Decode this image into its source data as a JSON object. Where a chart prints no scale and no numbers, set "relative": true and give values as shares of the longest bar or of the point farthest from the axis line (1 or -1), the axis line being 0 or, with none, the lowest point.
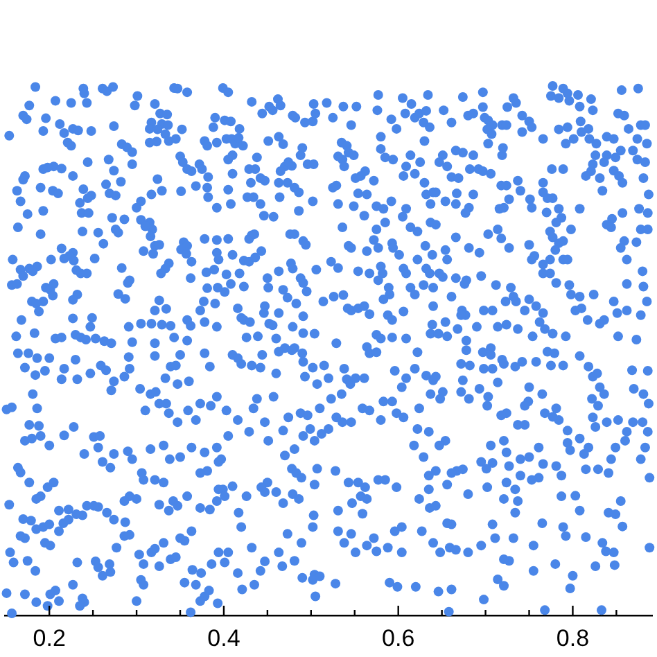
{
  "chart_data": {
    "type": "scatter",
    "color": "#4a86e8",
    "marker": "circle",
    "relative": true,
    "xlim": [
      0.149,
      0.891
    ],
    "xticks": [
      0.2,
      {
        "value": 0.25,
        "label": null
      },
      {
        "value": 0.3,
        "label": null
      },
      {
        "value": 0.35,
        "label": null
      },
      0.4,
      {
        "value": 0.45,
        "label": null
      },
      {
        "value": 0.5,
        "label": null
      },
      {
        "value": 0.55,
        "label": null
      },
      0.6,
      {
        "value": 0.65,
        "label": null
      },
      {
        "value": 0.7,
        "label": null
      },
      {
        "value": 0.75,
        "label": null
      },
      0.8,
      {
        "value": 0.85,
        "label": null
      }
    ],
    "x": [
      0.184,
      0.239,
      0.24,
      0.261,
      0.273,
      0.266,
      0.343,
      0.347,
      0.358,
      0.301,
      0.298,
      0.177,
      0.207,
      0.225,
      0.243,
      0.321,
      0.17,
      0.174,
      0.196,
      0.212,
      0.227,
      0.233,
      0.248,
      0.274,
      0.154,
      0.193,
      0.217,
      0.221,
      0.225,
      0.327,
      0.335,
      0.317,
      0.315,
      0.329,
      0.336,
      0.324,
      0.352,
      0.333,
      0.315,
      0.323,
      0.337,
      0.345,
      0.378,
      0.381,
      0.39,
      0.388,
      0.392,
      0.283,
      0.289,
      0.295,
      0.295,
      0.244,
      0.268,
      0.274,
      0.205,
      0.198,
      0.193,
      0.214,
      0.227,
      0.172,
      0.17,
      0.163,
      0.167,
      0.19,
      0.204,
      0.21,
      0.239,
      0.248,
      0.244,
      0.269,
      0.276,
      0.265,
      0.282,
      0.324,
      0.329,
      0.317,
      0.305,
      0.3,
      0.351,
      0.35,
      0.353,
      0.358,
      0.363,
      0.372,
      0.375,
      0.368,
      0.382,
      0.381,
      0.382,
      0.392,
      0.235,
      0.237,
      0.245,
      0.175,
      0.193,
      0.164,
      0.19,
      0.238,
      0.256,
      0.272,
      0.286,
      0.276,
      0.279,
      0.305,
      0.315,
      0.318,
      0.31,
      0.262,
      0.316,
      0.321,
      0.326,
      0.308,
      0.319,
      0.354,
      0.358,
      0.351,
      0.357,
      0.363,
      0.378,
      0.392,
      0.392,
      0.394,
      0.214,
      0.227,
      0.223,
      0.217,
      0.228,
      0.202,
      0.186,
      0.177,
      0.181,
      0.167,
      0.158,
      0.17,
      0.157,
      0.163,
      0.231,
      0.236,
      0.243,
      0.252,
      0.283,
      0.337,
      0.333,
      0.328,
      0.362,
      0.38,
      0.389,
      0.393,
      0.381,
      0.196,
      0.201,
      0.205,
      0.204,
      0.193,
      0.18,
      0.185,
      0.232,
      0.227,
      0.29,
      0.292,
      0.279,
      0.287,
      0.168,
      0.227,
      0.249,
      0.247,
      0.188,
      0.326,
      0.321,
      0.334,
      0.305,
      0.317,
      0.329,
      0.339,
      0.291,
      0.373,
      0.377,
      0.39,
      0.358,
      0.362,
      0.378,
      0.392,
      0.162,
      0.183,
      0.207,
      0.214,
      0.23,
      0.236,
      0.242,
      0.253,
      0.263,
      0.271,
      0.295,
      0.321,
      0.343,
      0.358,
      0.399,
      0.405,
      0.432,
      0.444,
      0.452,
      0.456,
      0.462,
      0.465,
      0.479,
      0.482,
      0.493,
      0.502,
      0.503,
      0.505,
      0.518,
      0.525,
      0.537,
      0.552,
      0.546,
      0.577,
      0.576,
      0.592,
      0.598,
      0.605,
      0.608,
      0.615,
      0.619,
      0.624,
      0.629,
      0.632,
      0.634,
      0.636,
      0.63,
      0.401,
      0.408,
      0.418,
      0.403,
      0.409,
      0.413,
      0.417,
      0.422,
      0.405,
      0.41,
      0.438,
      0.451,
      0.463,
      0.468,
      0.49,
      0.488,
      0.496,
      0.503,
      0.535,
      0.541,
      0.543,
      0.549,
      0.536,
      0.531,
      0.538,
      0.562,
      0.557,
      0.551,
      0.572,
      0.58,
      0.58,
      0.585,
      0.594,
      0.614,
      0.609,
      0.619,
      0.625,
      0.632,
      0.64,
      0.637,
      0.63,
      0.606,
      0.429,
      0.436,
      0.442,
      0.447,
      0.431,
      0.41,
      0.405,
      0.408,
      0.427,
      0.434,
      0.442,
      0.463,
      0.473,
      0.481,
      0.486,
      0.47,
      0.474,
      0.478,
      0.465,
      0.464,
      0.502,
      0.525,
      0.529,
      0.531,
      0.549,
      0.554,
      0.564,
      0.575,
      0.583,
      0.592,
      0.609,
      0.605,
      0.614,
      0.622,
      0.637,
      0.446,
      0.457,
      0.486,
      0.476,
      0.481,
      0.491,
      0.494,
      0.432,
      0.429,
      0.435,
      0.405,
      0.536,
      0.561,
      0.575,
      0.585,
      0.572,
      0.593,
      0.594,
      0.601,
      0.577,
      0.564,
      0.543,
      0.546,
      0.631,
      0.639,
      0.41,
      0.423,
      0.429,
      0.443,
      0.436,
      0.463,
      0.477,
      0.479,
      0.488,
      0.491,
      0.506,
      0.523,
      0.531,
      0.554,
      0.567,
      0.58,
      0.582,
      0.577,
      0.589,
      0.59,
      0.606,
      0.609,
      0.622,
      0.632,
      0.636,
      0.614,
      0.619,
      0.629,
      0.64,
      0.418,
      0.403,
      0.408,
      0.401,
      0.423,
      0.45,
      0.451,
      0.468,
      0.473,
      0.483,
      0.495,
      0.514,
      0.526,
      0.537,
      0.542,
      0.546,
      0.554,
      0.561,
      0.567,
      0.583,
      0.588,
      0.593,
      0.606,
      0.64,
      0.639,
      0.416,
      0.42,
      0.423,
      0.43,
      0.447,
      0.446,
      0.452,
      0.456,
      0.463,
      0.479,
      0.491,
      0.491,
      0.504,
      0.439,
      0.426,
      0.46,
      0.47,
      0.481,
      0.529,
      0.564,
      0.575,
      0.58,
      0.593,
      0.609,
      0.637,
      0.674,
      0.697,
      0.652,
      0.661,
      0.68,
      0.686,
      0.697,
      0.699,
      0.703,
      0.708,
      0.702,
      0.707,
      0.719,
      0.724,
      0.725,
      0.732,
      0.735,
      0.742,
      0.75,
      0.753,
      0.742,
      0.766,
      0.777,
      0.789,
      0.775,
      0.784,
      0.794,
      0.796,
      0.806,
      0.821,
      0.823,
      0.808,
      0.809,
      0.818,
      0.81,
      0.794,
      0.784,
      0.792,
      0.801,
      0.819,
      0.827,
      0.839,
      0.847,
      0.856,
      0.875,
      0.852,
      0.859,
      0.864,
      0.878,
      0.883,
      0.874,
      0.885,
      0.869,
      0.855,
      0.849,
      0.839,
      0.836,
      0.826,
      0.823,
      0.821,
      0.815,
      0.831,
      0.834,
      0.847,
      0.853,
      0.857,
      0.874,
      0.883,
      0.881,
      0.887,
      0.886,
      0.876,
      0.857,
      0.845,
      0.839,
      0.844,
      0.859,
      0.873,
      0.886,
      0.878,
      0.651,
      0.647,
      0.656,
      0.661,
      0.669,
      0.682,
      0.692,
      0.697,
      0.706,
      0.719,
      0.72,
      0.703,
      0.686,
      0.674,
      0.666,
      0.643,
      0.654,
      0.666,
      0.667,
      0.686,
      0.681,
      0.677,
      0.643,
      0.654,
      0.666,
      0.681,
      0.693,
      0.703,
      0.714,
      0.718,
      0.727,
      0.716,
      0.721,
      0.727,
      0.718,
      0.724,
      0.737,
      0.74,
      0.751,
      0.753,
      0.766,
      0.766,
      0.771,
      0.77,
      0.777,
      0.784,
      0.787,
      0.781,
      0.789,
      0.776,
      0.808,
      0.798,
      0.774,
      0.777,
      0.784,
      0.789,
      0.78,
      0.789,
      0.794,
      0.774,
      0.766,
      0.753,
      0.756,
      0.75,
      0.766,
      0.774,
      0.781,
      0.796,
      0.798,
      0.808,
      0.81,
      0.824,
      0.803,
      0.817,
      0.831,
      0.836,
      0.851,
      0.862,
      0.878,
      0.885,
      0.881,
      0.862,
      0.88,
      0.862,
      0.855,
      0.847,
      0.656,
      0.647,
      0.651,
      0.666,
      0.676,
      0.678,
      0.695,
      0.712,
      0.729,
      0.735,
      0.732,
      0.723,
      0.75,
      0.758,
      0.766,
      0.762,
      0.768,
      0.777,
      0.792,
      0.745,
      0.708,
      0.698,
      0.661,
      0.673,
      0.677,
      0.672,
      0.654,
      0.668,
      0.678,
      0.69,
      0.714,
      0.724,
      0.737,
      0.754,
      0.646,
      0.656,
      0.852,
      0.873,
      0.706,
      0.164,
      0.172,
      0.176,
      0.186,
      0.2,
      0.195,
      0.184,
      0.217,
      0.214,
      0.232,
      0.23,
      0.247,
      0.259,
      0.265,
      0.274,
      0.271,
      0.286,
      0.292,
      0.291,
      0.304,
      0.316,
      0.321,
      0.333,
      0.339,
      0.345,
      0.35,
      0.347,
      0.36,
      0.378,
      0.384,
      0.392,
      0.385,
      0.373,
      0.368,
      0.359,
      0.347,
      0.337,
      0.334,
      0.326,
      0.322,
      0.157,
      0.151,
      0.186,
      0.181,
      0.177,
      0.188,
      0.172,
      0.18,
      0.19,
      0.2,
      0.217,
      0.228,
      0.24,
      0.251,
      0.258,
      0.256,
      0.261,
      0.274,
      0.27,
      0.29,
      0.295,
      0.31,
      0.316,
      0.331,
      0.338,
      0.35,
      0.363,
      0.378,
      0.392,
      0.394,
      0.381,
      0.373,
      0.394,
      0.392,
      0.384,
      0.373,
      0.358,
      0.347,
      0.342,
      0.337,
      0.326,
      0.331,
      0.321,
      0.308,
      0.306,
      0.3,
      0.292,
      0.286,
      0.274,
      0.266,
      0.256,
      0.251,
      0.243,
      0.238,
      0.231,
      0.222,
      0.211,
      0.205,
      0.198,
      0.19,
      0.185,
      0.177,
      0.167,
      0.164,
      0.154,
      0.17,
      0.179,
      0.185,
      0.193,
      0.2,
      0.211,
      0.216,
      0.222,
      0.201,
      0.195,
      0.172,
      0.167,
      0.159,
      0.155,
      0.175,
      0.184,
      0.207,
      0.211,
      0.201,
      0.185,
      0.172,
      0.151,
      0.198,
      0.227,
      0.238,
      0.24,
      0.235,
      0.232,
      0.253,
      0.256,
      0.261,
      0.269,
      0.27,
      0.277,
      0.286,
      0.287,
      0.292,
      0.303,
      0.308,
      0.317,
      0.321,
      0.326,
      0.339,
      0.345,
      0.35,
      0.355,
      0.363,
      0.364,
      0.374,
      0.368,
      0.355,
      0.378,
      0.383,
      0.373,
      0.362,
      0.331,
      0.393,
      0.394,
      0.386,
      0.305,
      0.308,
      0.3,
      0.157,
      0.41,
      0.42,
      0.416,
      0.432,
      0.442,
      0.444,
      0.463,
      0.478,
      0.49,
      0.491,
      0.502,
      0.515,
      0.52,
      0.507,
      0.493,
      0.46,
      0.438,
      0.457,
      0.434,
      0.416,
      0.403,
      0.405,
      0.397,
      0.429,
      0.447,
      0.451,
      0.468,
      0.474,
      0.488,
      0.496,
      0.51,
      0.523,
      0.535,
      0.541,
      0.545,
      0.551,
      0.561,
      0.538,
      0.567,
      0.575,
      0.596,
      0.604,
      0.609,
      0.619,
      0.622,
      0.632,
      0.64,
      0.637,
      0.624,
      0.622,
      0.635,
      0.618,
      0.629,
      0.635,
      0.624,
      0.636,
      0.627,
      0.64,
      0.635,
      0.593,
      0.598,
      0.606,
      0.583,
      0.58,
      0.567,
      0.559,
      0.546,
      0.536,
      0.529,
      0.52,
      0.512,
      0.504,
      0.499,
      0.491,
      0.481,
      0.478,
      0.47,
      0.483,
      0.489,
      0.486,
      0.479,
      0.468,
      0.46,
      0.447,
      0.45,
      0.443,
      0.426,
      0.41,
      0.399,
      0.417,
      0.42,
      0.401,
      0.405,
      0.401,
      0.416,
      0.421,
      0.435,
      0.442,
      0.432,
      0.447,
      0.463,
      0.467,
      0.473,
      0.481,
      0.502,
      0.503,
      0.507,
      0.504,
      0.528,
      0.531,
      0.543,
      0.554,
      0.562,
      0.557,
      0.564,
      0.547,
      0.559,
      0.577,
      0.585,
      0.598,
      0.546,
      0.531,
      0.538,
      0.551,
      0.564,
      0.572,
      0.575,
      0.588,
      0.596,
      0.604,
      0.604,
      0.59,
      0.599,
      0.62,
      0.504,
      0.51,
      0.502,
      0.505,
      0.49,
      0.528,
      0.489,
      0.678,
      0.697,
      0.706,
      0.719,
      0.721,
      0.708,
      0.698,
      0.682,
      0.672,
      0.643,
      0.651,
      0.648,
      0.674,
      0.672,
      0.681,
      0.693,
      0.703,
      0.702,
      0.714,
      0.734,
      0.742,
      0.758,
      0.771,
      0.779,
      0.775,
      0.789,
      0.808,
      0.818,
      0.823,
      0.828,
      0.831,
      0.836,
      0.822,
      0.829,
      0.823,
      0.826,
      0.839,
      0.852,
      0.868,
      0.87,
      0.881,
      0.886,
      0.887,
      0.88,
      0.869,
      0.862,
      0.886,
      0.883,
      0.878,
      0.888,
      0.86,
      0.849,
      0.844,
      0.841,
      0.829,
      0.815,
      0.818,
      0.813,
      0.808,
      0.794,
      0.797,
      0.794,
      0.784,
      0.777,
      0.781,
      0.768,
      0.765,
      0.75,
      0.749,
      0.745,
      0.724,
      0.718,
      0.737,
      0.745,
      0.721,
      0.724,
      0.706,
      0.708,
      0.695,
      0.701,
      0.727,
      0.74,
      0.75,
      0.761,
      0.766,
      0.781,
      0.787,
      0.761,
      0.753,
      0.74,
      0.724,
      0.734,
      0.737,
      0.734,
      0.721,
      0.702,
      0.68,
      0.656,
      0.643,
      0.667,
      0.661,
      0.674,
      0.643,
      0.654,
      0.647,
      0.661,
      0.656,
      0.648,
      0.659,
      0.666,
      0.68,
      0.646,
      0.661,
      0.658,
      0.698,
      0.714,
      0.721,
      0.727,
      0.721,
      0.695,
      0.708,
      0.711,
      0.732,
      0.765,
      0.755,
      0.755,
      0.78,
      0.789,
      0.792,
      0.787,
      0.803,
      0.808,
      0.8,
      0.797,
      0.815,
      0.826,
      0.834,
      0.838,
      0.847,
      0.848,
      0.841,
      0.849,
      0.855,
      0.857,
      0.888,
      0.768,
      0.833
    ],
    "values": [
      0.998,
      0.995,
      0.986,
      0.995,
      0.998,
      0.99,
      0.996,
      0.995,
      0.988,
      0.981,
      0.963,
      0.963,
      0.972,
      0.968,
      0.968,
      0.966,
      0.944,
      0.937,
      0.939,
      0.928,
      0.919,
      0.916,
      0.915,
      0.924,
      0.906,
      0.915,
      0.911,
      0.893,
      0.887,
      0.948,
      0.946,
      0.931,
      0.919,
      0.928,
      0.926,
      0.918,
      0.918,
      0.909,
      0.893,
      0.895,
      0.896,
      0.9,
      0.896,
      0.887,
      0.94,
      0.922,
      0.893,
      0.89,
      0.884,
      0.875,
      0.852,
      0.856,
      0.861,
      0.84,
      0.848,
      0.846,
      0.843,
      0.844,
      0.83,
      0.83,
      0.823,
      0.802,
      0.782,
      0.808,
      0.802,
      0.797,
      0.805,
      0.793,
      0.788,
      0.797,
      0.793,
      0.814,
      0.819,
      0.824,
      0.802,
      0.795,
      0.782,
      0.77,
      0.801,
      0.867,
      0.856,
      0.843,
      0.839,
      0.852,
      0.843,
      0.811,
      0.828,
      0.808,
      0.79,
      0.77,
      0.779,
      0.76,
      0.76,
      0.758,
      0.764,
      0.733,
      0.72,
      0.725,
      0.723,
      0.751,
      0.748,
      0.729,
      0.723,
      0.747,
      0.742,
      0.729,
      0.735,
      0.702,
      0.716,
      0.698,
      0.7,
      0.688,
      0.683,
      0.705,
      0.698,
      0.691,
      0.683,
      0.668,
      0.711,
      0.709,
      0.685,
      0.672,
      0.693,
      0.685,
      0.679,
      0.674,
      0.67,
      0.672,
      0.659,
      0.655,
      0.65,
      0.653,
      0.672,
      0.641,
      0.624,
      0.626,
      0.652,
      0.646,
      0.646,
      0.674,
      0.656,
      0.665,
      0.655,
      0.646,
      0.637,
      0.648,
      0.653,
      0.619,
      0.618,
      0.619,
      0.615,
      0.626,
      0.604,
      0.593,
      0.593,
      0.589,
      0.606,
      0.596,
      0.628,
      0.633,
      0.607,
      0.598,
      0.558,
      0.561,
      0.562,
      0.545,
      0.574,
      0.595,
      0.576,
      0.579,
      0.551,
      0.551,
      0.549,
      0.547,
      0.545,
      0.576,
      0.593,
      0.589,
      0.558,
      0.547,
      0.554,
      0.545,
      0.527,
      0.533,
      0.523,
      0.525,
      0.53,
      0.525,
      0.521,
      0.523,
      0.518,
      0.514,
      0.516,
      0.514,
      0.525,
      0.519,
      0.996,
      0.988,
      0.97,
      0.948,
      0.961,
      0.954,
      0.975,
      0.963,
      0.944,
      0.94,
      0.931,
      0.933,
      0.966,
      0.948,
      0.968,
      0.94,
      0.961,
      0.961,
      0.926,
      0.983,
      0.954,
      0.937,
      0.919,
      0.977,
      0.948,
      0.966,
      0.94,
      0.948,
      0.931,
      0.953,
      0.983,
      0.922,
      0.896,
      0.935,
      0.933,
      0.919,
      0.9,
      0.9,
      0.891,
      0.902,
      0.887,
      0.861,
      0.869,
      0.865,
      0.896,
      0.904,
      0.89,
      0.883,
      0.869,
      0.852,
      0.852,
      0.893,
      0.887,
      0.874,
      0.869,
      0.861,
      0.867,
      0.848,
      0.839,
      0.83,
      0.826,
      0.821,
      0.904,
      0.881,
      0.865,
      0.861,
      0.869,
      0.848,
      0.834,
      0.856,
      0.795,
      0.799,
      0.777,
      0.817,
      0.83,
      0.843,
      0.843,
      0.826,
      0.821,
      0.817,
      0.834,
      0.804,
      0.777,
      0.79,
      0.79,
      0.777,
      0.817,
      0.817,
      0.808,
      0.799,
      0.848,
      0.856,
      0.849,
      0.839,
      0.79,
      0.782,
      0.808,
      0.812,
      0.777,
      0.773,
      0.797,
      0.795,
      0.773,
      0.768,
      0.782,
      0.768,
      0.753,
      0.733,
      0.725,
      0.742,
      0.755,
      0.753,
      0.764,
      0.72,
      0.72,
      0.707,
      0.7,
      0.718,
      0.711,
      0.72,
      0.711,
      0.733,
      0.755,
      0.729,
      0.742,
      0.709,
      0.703,
      0.694,
      0.681,
      0.694,
      0.688,
      0.698,
      0.694,
      0.698,
      0.681,
      0.681,
      0.67,
      0.668,
      0.688,
      0.676,
      0.65,
      0.665,
      0.655,
      0.637,
      0.628,
      0.653,
      0.668,
      0.656,
      0.65,
      0.646,
      0.659,
      0.646,
      0.633,
      0.619,
      0.606,
      0.655,
      0.646,
      0.672,
      0.655,
      0.646,
      0.619,
      0.606,
      0.624,
      0.619,
      0.646,
      0.644,
      0.626,
      0.611,
      0.621,
      0.637,
      0.619,
      0.615,
      0.6,
      0.589,
      0.612,
      0.593,
      0.602,
      0.605,
      0.58,
      0.576,
      0.58,
      0.584,
      0.569,
      0.597,
      0.567,
      0.558,
      0.574,
      0.584,
      0.549,
      0.58,
      0.562,
      0.558,
      0.554,
      0.584,
      0.571,
      0.551,
      0.548,
      0.571,
      0.545,
      0.565,
      0.533,
      0.532,
      0.527,
      0.525,
      0.523,
      0.505,
      0.505,
      0.514,
      0.507,
      0.53,
      0.523,
      0.525,
      0.523,
      0.532,
      0.979,
      0.988,
      0.954,
      0.931,
      0.944,
      0.948,
      0.96,
      0.94,
      0.935,
      0.926,
      0.918,
      0.909,
      0.926,
      0.926,
      0.96,
      0.977,
      0.968,
      0.944,
      0.933,
      0.922,
      0.913,
      0.9,
      1,
      0.995,
      0.981,
      0.977,
      0.986,
      0.972,
      0.983,
      0.975,
      0.954,
      0.961,
      0.933,
      0.919,
      0.913,
      0.922,
      0.918,
      0.891,
      0.9,
      0.9,
      0.891,
      0.904,
      0.9,
      0.992,
      0.995,
      0.948,
      0.944,
      0.919,
      0.926,
      0.926,
      0.9,
      0.891,
      0.878,
      0.878,
      0.865,
      0.869,
      0.856,
      0.869,
      0.852,
      0.839,
      0.83,
      0.826,
      0.802,
      0.84,
      0.83,
      0.817,
      0.861,
      0.856,
      0.826,
      0.795,
      0.76,
      0.768,
      0.76,
      0.749,
      0.738,
      0.733,
      0.707,
      0.705,
      0.729,
      0.729,
      0.869,
      0.856,
      0.848,
      0.828,
      0.826,
      0.843,
      0.843,
      0.839,
      0.834,
      0.869,
      0.883,
      0.891,
      0.869,
      0.874,
      0.878,
      0.799,
      0.782,
      0.777,
      0.797,
      0.795,
      0.77,
      0.76,
      0.738,
      0.69,
      0.714,
      0.694,
      0.685,
      0.72,
      0.729,
      0.712,
      0.694,
      0.768,
      0.77,
      0.786,
      0.812,
      0.812,
      0.821,
      0.802,
      0.786,
      0.77,
      0.817,
      0.799,
      0.788,
      0.761,
      0.788,
      0.768,
      0.751,
      0.742,
      0.843,
      0.843,
      0.768,
      0.729,
      0.725,
      0.714,
      0.703,
      0.707,
      0.69,
      0.672,
      0.672,
      0.672,
      0.663,
      0.672,
      0.679,
      0.7,
      0.646,
      0.646,
      0.628,
      0.624,
      0.606,
      0.602,
      0.58,
      0.606,
      0.576,
      0.558,
      0.551,
      0.558,
      0.571,
      0.576,
      0.567,
      0.593,
      0.621,
      0.626,
      0.65,
      0.672,
      0.694,
      0.593,
      0.672,
      0.646,
      0.639,
      0.637,
      0.626,
      0.633,
      0.641,
      0.624,
      0.619,
      0.593,
      0.602,
      0.593,
      0.597,
      0.584,
      0.571,
      0.554,
      0.541,
      0.532,
      0.527,
      0.576,
      0.576,
      0.576,
      0.602,
      0.576,
      0.567,
      0.567,
      0.554,
      0.541,
      0.519,
      0.545,
      0.545,
      0.549,
      0.541,
      0.527,
      0.532,
      0.527,
      0.527,
      0.521,
      0.505,
      0.495,
      0.468,
      0.495,
      0.486,
      0.486,
      0.462,
      0.454,
      0.466,
      0.446,
      0.446,
      0.483,
      0.457,
      0.472,
      0.463,
      0.442,
      0.425,
      0.451,
      0.466,
      0.488,
      0.428,
      0.418,
      0.49,
      0.448,
      0.47,
      0.472,
      0.492,
      0.437,
      0.442,
      0.495,
      0.47,
      0.413,
      0.396,
      0.4,
      0.369,
      0.387,
      0.365,
      0.382,
      0.4,
      0.4,
      0.422,
      0.393,
      0.389,
      0.391,
      0.418,
      0.36,
      0.358,
      0.33,
      0.334,
      0.339,
      0.321,
      0.34,
      0.356,
      0.305,
      0.337,
      0.339,
      0.317,
      0.29,
      0.305,
      0.279,
      0.31,
      0.295,
      0.387,
      0.314,
      0.321,
      0.295,
      0.299,
      0.317,
      0.308,
      0.317,
      0.29,
      0.273,
      0.269,
      0.238,
      0.216,
      0.2,
      0.203,
      0.225,
      0.207,
      0.216,
      0.198,
      0.209,
      0.251,
      0.256,
      0.256,
      0.269,
      0.22,
      0.225,
      0.216,
      0.181,
      0.194,
      0.205,
      0.207,
      0.207,
      0.189,
      0.191,
      0.2,
      0.198,
      0.251,
      0.242,
      0.225,
      0.22,
      0.251,
      0.27,
      0.279,
      0.209,
      0.182,
      0.179,
      0.163,
      0.167,
      0.172,
      0.159,
      0.174,
      0.181,
      0.132,
      0.137,
      0.146,
      0.15,
      0.1,
      0.119,
      0.103,
      0.084,
      0.047,
      0.027,
      0.04,
      0.025,
      0.04,
      0.042,
      0.018,
      0.058,
      0.032,
      0.025,
      0.018,
      0.1,
      0.102,
      0.091,
      0.075,
      0.097,
      0.082,
      0.128,
      0.15,
      0.176,
      0.152,
      0.115,
      0.097,
      0.119,
      0.126,
      0.093,
      0.106,
      0.11,
      0.146,
      0.141,
      0.159,
      0.086,
      0.08,
      0.058,
      0.062,
      0.036,
      0.047,
      0.027,
      0.006,
      0.137,
      0.023,
      0.119,
      0.097,
      0.067,
      0.058,
      0.027,
      0.004,
      0.492,
      0.475,
      0.486,
      0.472,
      0.468,
      0.492,
      0.498,
      0.501,
      0.495,
      0.479,
      0.468,
      0.472,
      0.448,
      0.437,
      0.451,
      0.457,
      0.409,
      0.413,
      0.391,
      0.369,
      0.387,
      0.339,
      0.295,
      0.347,
      0.365,
      0.33,
      0.349,
      0.374,
      0.382,
      0.378,
      0.391,
      0.409,
      0.418,
      0.446,
      0.437,
      0.448,
      0.448,
      0.466,
      0.495,
      0.497,
      0.462,
      0.431,
      0.448,
      0.466,
      0.497,
      0.453,
      0.444,
      0.418,
      0.391,
      0.352,
      0.347,
      0.321,
      0.299,
      0.264,
      0.22,
      0.203,
      0.159,
      0.137,
      0.238,
      0.404,
      0.382,
      0.374,
      0.404,
      0.369,
      0.387,
      0.391,
      0.365,
      0.365,
      0.374,
      0.352,
      0.343,
      0.33,
      0.352,
      0.339,
      0.314,
      0.277,
      0.302,
      0.269,
      0.26,
      0.22,
      0.229,
      0.212,
      0.233,
      0.233,
      0.251,
      0.242,
      0.225,
      0.244,
      0.238,
      0.194,
      0.167,
      0.225,
      0.119,
      0.1,
      0.08,
      0.049,
      0.058,
      0.084,
      0.128,
      0.102,
      0.119,
      0.093,
      0.154,
      0.103,
      0.167,
      0.189,
      0.277,
      0.247,
      0.273,
      0.198,
      0.251,
      0.251,
      0.242,
      0.225,
      0.22,
      0.212,
      0.192,
      0.256,
      0.256,
      0.242,
      0.154,
      0.159,
      0.137,
      0.119,
      0.132,
      0.146,
      0.121,
      0.128,
      0.159,
      0.167,
      0.119,
      0.062,
      0.054,
      0.054,
      0.077,
      0.074,
      0.067,
      0.036,
      0.071,
      0.06,
      0.137,
      0.501,
      0.497,
      0.492,
      0.483,
      0.475,
      0.466,
      0.466,
      0.472,
      0.475,
      0.451,
      0.422,
      0.409,
      0.444,
      0.422,
      0.409,
      0.428,
      0.413,
      0.396,
      0.44,
      0.47,
      0.479,
      0.479,
      0.498,
      0.495,
      0.472,
      0.472,
      0.49,
      0.47,
      0.451,
      0.457,
      0.431,
      0.418,
      0.409,
      0.396,
      0.374,
      0.356,
      0.365,
      0.369,
      0.463,
      0.428,
      0.418,
      0.462,
      0.4,
      0.365,
      0.365,
      0.347,
      0.347,
      0.317,
      0.295,
      0.26,
      0.33,
      0.317,
      0.295,
      0.269,
      0.276,
      0.276,
      0.317,
      0.305,
      0.334,
      0.326,
      0.312,
      0.349,
      0.369,
      0.375,
      0.391,
      0.382,
      0.418,
      0.431,
      0.404,
      0.396,
      0.382,
      0.378,
      0.36,
      0.36,
      0.33,
      0.308,
      0.321,
      0.288,
      0.29,
      0.277,
      0.282,
      0.295,
      0.299,
      0.317,
      0.286,
      0.282,
      0.264,
      0.26,
      0.256,
      0.264,
      0.251,
      0.238,
      0.216,
      0.194,
      0.22,
      0.242,
      0.229,
      0.247,
      0.207,
      0.273,
      0.269,
      0.276,
      0.273,
      0.33,
      0.321,
      0.172,
      0.174,
      0.119,
      0.128,
      0.124,
      0.119,
      0.045,
      0.049,
      0.007,
      0.03,
      0.068,
      0.056,
      0.103,
      0.106,
      0.132,
      0.172,
      0.146,
      0.146,
      0.174,
      0.132,
      0.084,
      0.097,
      0.167,
      0.15,
      0.225,
      0.226,
      0.198,
      0.075,
      0.051,
      0.148,
      0.093,
      0.137,
      0.121,
      0.119,
      0.095,
      0.194,
      0.191,
      0.216,
      0.168,
      0.128,
      0.01,
      0.01
    ]
  }
}
